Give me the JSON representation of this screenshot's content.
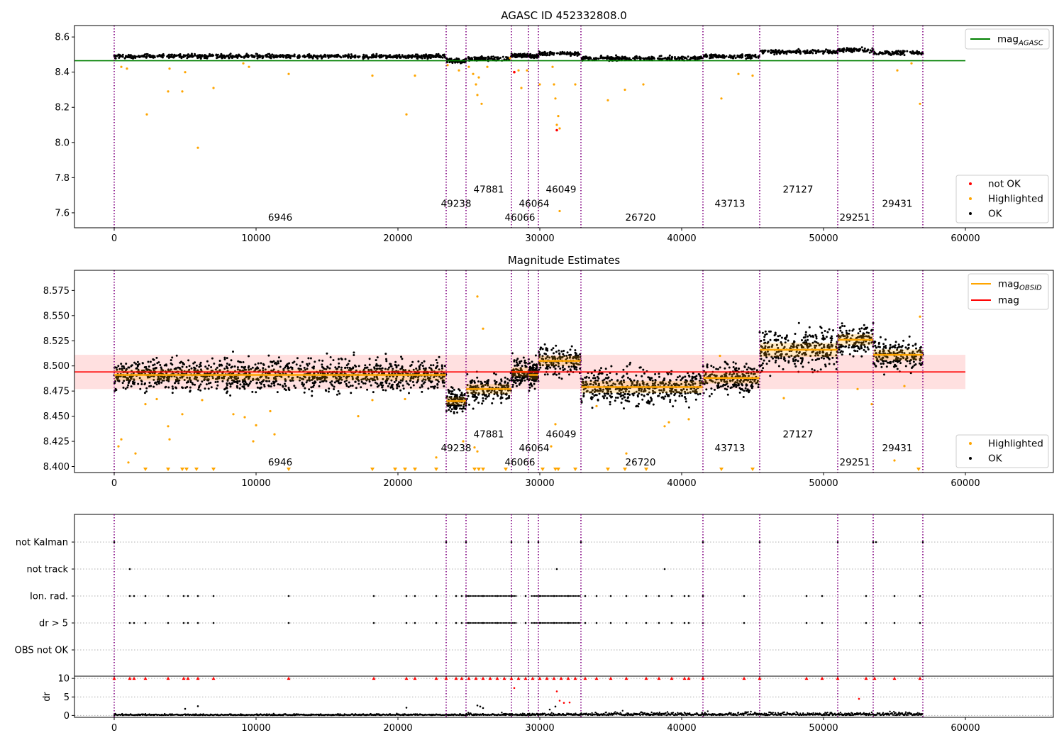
{
  "chart_data": [
    {
      "type": "scatter",
      "title": "AGASC ID 452332808.0",
      "xlim": [
        -2800,
        66200
      ],
      "ylim": [
        7.515,
        8.665
      ],
      "xticks": [
        0,
        10000,
        20000,
        30000,
        40000,
        50000,
        60000
      ],
      "yticks": [
        7.6,
        7.8,
        8.0,
        8.2,
        8.4,
        8.6
      ],
      "ytick_labels": [
        "7.6",
        "7.8",
        "8.0",
        "8.2",
        "8.4",
        "8.6"
      ],
      "legend_top": [
        {
          "label": "mag",
          "sub": "AGASC",
          "color": "#008000",
          "kind": "line"
        }
      ],
      "legend_bottom": [
        {
          "label": "not OK",
          "color": "#ff0000",
          "kind": "dot"
        },
        {
          "label": "Highlighted",
          "color": "#ffa500",
          "kind": "dot"
        },
        {
          "label": "OK",
          "color": "#000000",
          "kind": "dot"
        }
      ],
      "mag_agasc": 8.465,
      "mag_agasc_xrange": [
        -2800,
        60000
      ],
      "segments": [
        {
          "x0": 0,
          "x1": 23400,
          "level": 8.49
        },
        {
          "x0": 23400,
          "x1": 24800,
          "level": 8.464
        },
        {
          "x0": 24800,
          "x1": 28000,
          "level": 8.477
        },
        {
          "x0": 28000,
          "x1": 29200,
          "level": 8.495
        },
        {
          "x0": 29200,
          "x1": 29900,
          "level": 8.492
        },
        {
          "x0": 29900,
          "x1": 32900,
          "level": 8.505
        },
        {
          "x0": 32900,
          "x1": 41500,
          "level": 8.479
        },
        {
          "x0": 41500,
          "x1": 45500,
          "level": 8.49
        },
        {
          "x0": 45500,
          "x1": 51000,
          "level": 8.515
        },
        {
          "x0": 51000,
          "x1": 53500,
          "level": 8.525
        },
        {
          "x0": 53500,
          "x1": 57000,
          "level": 8.51
        }
      ],
      "highlighted_points": [
        [
          500,
          8.43
        ],
        [
          900,
          8.42
        ],
        [
          2300,
          8.16
        ],
        [
          3800,
          8.29
        ],
        [
          3900,
          8.42
        ],
        [
          4800,
          8.29
        ],
        [
          5000,
          8.4
        ],
        [
          5900,
          7.97
        ],
        [
          7000,
          8.31
        ],
        [
          9100,
          8.45
        ],
        [
          9500,
          8.43
        ],
        [
          12300,
          8.39
        ],
        [
          18200,
          8.38
        ],
        [
          20600,
          8.16
        ],
        [
          21200,
          8.38
        ],
        [
          23500,
          8.44
        ],
        [
          24300,
          8.41
        ],
        [
          25000,
          8.43
        ],
        [
          25300,
          8.39
        ],
        [
          25500,
          8.33
        ],
        [
          25600,
          8.27
        ],
        [
          25700,
          8.37
        ],
        [
          25900,
          8.22
        ],
        [
          26300,
          8.43
        ],
        [
          27900,
          8.48
        ],
        [
          28500,
          8.41
        ],
        [
          28700,
          8.31
        ],
        [
          29100,
          8.41
        ],
        [
          30000,
          8.33
        ],
        [
          30900,
          8.43
        ],
        [
          31000,
          8.33
        ],
        [
          31100,
          8.25
        ],
        [
          31200,
          8.1
        ],
        [
          31300,
          8.15
        ],
        [
          31400,
          8.08
        ],
        [
          31400,
          7.61
        ],
        [
          32500,
          8.33
        ],
        [
          34800,
          8.24
        ],
        [
          36000,
          8.3
        ],
        [
          37300,
          8.33
        ],
        [
          42800,
          8.25
        ],
        [
          44000,
          8.39
        ],
        [
          45000,
          8.38
        ],
        [
          55200,
          8.41
        ],
        [
          56800,
          8.22
        ],
        [
          56200,
          8.45
        ]
      ],
      "notok_points": [
        [
          28200,
          8.4
        ],
        [
          31200,
          8.07
        ]
      ],
      "obsid_labels": [
        {
          "x": 11700,
          "y": 7.555,
          "text": "6946"
        },
        {
          "x": 24100,
          "y": 7.635,
          "text": "49238"
        },
        {
          "x": 26400,
          "y": 7.715,
          "text": "47881"
        },
        {
          "x": 28600,
          "y": 7.555,
          "text": "46066"
        },
        {
          "x": 29600,
          "y": 7.635,
          "text": "46064"
        },
        {
          "x": 31500,
          "y": 7.715,
          "text": "46049"
        },
        {
          "x": 37100,
          "y": 7.555,
          "text": "26720"
        },
        {
          "x": 43400,
          "y": 7.635,
          "text": "43713"
        },
        {
          "x": 48200,
          "y": 7.715,
          "text": "27127"
        },
        {
          "x": 52200,
          "y": 7.555,
          "text": "29251"
        },
        {
          "x": 55200,
          "y": 7.635,
          "text": "29431"
        }
      ]
    },
    {
      "type": "scatter",
      "title": "Magnitude Estimates",
      "xlim": [
        -2800,
        66200
      ],
      "ylim": [
        8.394,
        8.595
      ],
      "xticks": [
        0,
        10000,
        20000,
        30000,
        40000,
        50000,
        60000
      ],
      "yticks": [
        8.4,
        8.425,
        8.45,
        8.475,
        8.5,
        8.525,
        8.55,
        8.575
      ],
      "ytick_labels": [
        "8.400",
        "8.425",
        "8.450",
        "8.475",
        "8.500",
        "8.525",
        "8.550",
        "8.575"
      ],
      "legend_top": [
        {
          "label": "mag",
          "sub": "OBSID",
          "color": "#ffa500",
          "kind": "line"
        },
        {
          "label": "mag",
          "sub": "",
          "color": "#ff0000",
          "kind": "line"
        }
      ],
      "legend_bottom": [
        {
          "label": "Highlighted",
          "color": "#ffa500",
          "kind": "dot"
        },
        {
          "label": "OK",
          "color": "#000000",
          "kind": "dot"
        }
      ],
      "mag": 8.494,
      "mag_band": [
        8.477,
        8.511
      ],
      "mag_xrange": [
        -2800,
        60000
      ],
      "segments": [
        {
          "x0": 0,
          "x1": 23400,
          "level": 8.491,
          "spread": 0.011
        },
        {
          "x0": 23400,
          "x1": 24800,
          "level": 8.465,
          "spread": 0.008
        },
        {
          "x0": 24800,
          "x1": 28000,
          "level": 8.477,
          "spread": 0.01
        },
        {
          "x0": 28000,
          "x1": 29200,
          "level": 8.494,
          "spread": 0.009
        },
        {
          "x0": 29200,
          "x1": 29900,
          "level": 8.491,
          "spread": 0.009
        },
        {
          "x0": 29900,
          "x1": 32900,
          "level": 8.505,
          "spread": 0.01
        },
        {
          "x0": 32900,
          "x1": 41500,
          "level": 8.479,
          "spread": 0.012
        },
        {
          "x0": 41500,
          "x1": 45500,
          "level": 8.488,
          "spread": 0.011
        },
        {
          "x0": 45500,
          "x1": 51000,
          "level": 8.516,
          "spread": 0.014
        },
        {
          "x0": 51000,
          "x1": 53500,
          "level": 8.526,
          "spread": 0.011
        },
        {
          "x0": 53500,
          "x1": 57000,
          "level": 8.511,
          "spread": 0.011
        }
      ],
      "highlighted_points": [
        [
          300,
          8.42
        ],
        [
          500,
          8.427
        ],
        [
          1000,
          8.404
        ],
        [
          1500,
          8.413
        ],
        [
          2200,
          8.462
        ],
        [
          3000,
          8.467
        ],
        [
          3800,
          8.44
        ],
        [
          3900,
          8.427
        ],
        [
          4800,
          8.452
        ],
        [
          6200,
          8.466
        ],
        [
          8400,
          8.452
        ],
        [
          9200,
          8.449
        ],
        [
          9800,
          8.425
        ],
        [
          10000,
          8.441
        ],
        [
          11000,
          8.455
        ],
        [
          11300,
          8.432
        ],
        [
          17200,
          8.45
        ],
        [
          18200,
          8.466
        ],
        [
          20500,
          8.467
        ],
        [
          22700,
          8.409
        ],
        [
          24600,
          8.425
        ],
        [
          25400,
          8.419
        ],
        [
          25600,
          8.415
        ],
        [
          25600,
          8.569
        ],
        [
          26000,
          8.537
        ],
        [
          30800,
          8.42
        ],
        [
          31100,
          8.442
        ],
        [
          34000,
          8.46
        ],
        [
          36100,
          8.413
        ],
        [
          38800,
          8.44
        ],
        [
          39100,
          8.444
        ],
        [
          40500,
          8.447
        ],
        [
          42700,
          8.51
        ],
        [
          47200,
          8.468
        ],
        [
          52400,
          8.477
        ],
        [
          53400,
          8.462
        ],
        [
          55000,
          8.406
        ],
        [
          55700,
          8.48
        ],
        [
          56800,
          8.549
        ]
      ],
      "clipped_markers": [
        2200,
        3800,
        4800,
        5100,
        5800,
        7000,
        12300,
        18200,
        19800,
        20500,
        21200,
        22700,
        25400,
        25700,
        26000,
        27600,
        30200,
        31100,
        31300,
        32500,
        34800,
        36000,
        37500,
        42800,
        45000,
        56700
      ],
      "obsid_labels": [
        {
          "x": 11700,
          "y": 8.401,
          "text": "6946"
        },
        {
          "x": 24100,
          "y": 8.415,
          "text": "49238"
        },
        {
          "x": 26400,
          "y": 8.429,
          "text": "47881"
        },
        {
          "x": 28600,
          "y": 8.401,
          "text": "46066"
        },
        {
          "x": 29600,
          "y": 8.415,
          "text": "46064"
        },
        {
          "x": 31500,
          "y": 8.429,
          "text": "46049"
        },
        {
          "x": 37100,
          "y": 8.401,
          "text": "26720"
        },
        {
          "x": 43400,
          "y": 8.415,
          "text": "43713"
        },
        {
          "x": 48200,
          "y": 8.429,
          "text": "27127"
        },
        {
          "x": 52200,
          "y": 8.401,
          "text": "29251"
        },
        {
          "x": 55200,
          "y": 8.415,
          "text": "29431"
        }
      ]
    },
    {
      "type": "scatter",
      "title": "",
      "xlim": [
        -2800,
        66200
      ],
      "flag_rows": [
        "not Kalman",
        "not track",
        "Ion. rad.",
        "dr > 5",
        "OBS not OK"
      ],
      "flag_points": {
        "not Kalman": [
          0,
          23400,
          24800,
          28000,
          29200,
          29900,
          32900,
          41500,
          45500,
          51000,
          53500,
          53700,
          57000
        ],
        "not track": [
          1100,
          31200,
          38800
        ],
        "Ion. rad.": [
          1100,
          1400,
          2200,
          3800,
          4900,
          5200,
          5900,
          7000,
          12300,
          18300,
          20600,
          21200,
          22700,
          24100,
          24500,
          25000,
          26000,
          27000,
          28000,
          29000,
          30000,
          31000,
          32000,
          33200,
          34000,
          35000,
          36100,
          37500,
          38400,
          39300,
          40200,
          40500,
          41500,
          44400,
          48800,
          49900,
          53000,
          55000,
          56800
        ],
        "dr > 5": [
          1100,
          1400,
          2200,
          3800,
          4900,
          5200,
          5900,
          7000,
          12300,
          18300,
          20600,
          21200,
          22700,
          24100,
          24500,
          25000,
          26000,
          27000,
          28000,
          29000,
          30000,
          31000,
          32000,
          33200,
          34000,
          35000,
          36100,
          37500,
          38400,
          39300,
          40200,
          40500,
          41500,
          44400,
          48800,
          49900,
          53000,
          55000,
          56800
        ],
        "OBS not OK": []
      },
      "ion_dense_range": [
        24800,
        32900
      ],
      "dr_ylim": [
        -0.5,
        10.6
      ],
      "dr_yticks": [
        0,
        5,
        10
      ],
      "dr_ytick_labels": [
        "0",
        "5",
        "10"
      ],
      "dr_ylabel": "dr",
      "dr_clipped_markers": [
        0,
        1100,
        1400,
        2200,
        3800,
        4900,
        5200,
        5900,
        7000,
        12300,
        18300,
        20600,
        21200,
        22700,
        23400,
        24100,
        24500,
        25000,
        25500,
        26000,
        26500,
        27000,
        27500,
        28000,
        28500,
        29000,
        29500,
        30000,
        30500,
        31000,
        31500,
        32000,
        32500,
        33200,
        34000,
        35000,
        36100,
        37500,
        38400,
        39300,
        40200,
        40500,
        41500,
        44400,
        45500,
        48800,
        49900,
        51000,
        53000,
        53600,
        55000,
        56800
      ],
      "dr_red_points": [
        [
          28200,
          7.4
        ],
        [
          31200,
          6.5
        ],
        [
          31400,
          4
        ],
        [
          31700,
          3.4
        ],
        [
          32100,
          3.5
        ],
        [
          52500,
          4.5
        ]
      ],
      "dr_black_points": [
        [
          5000,
          1.8
        ],
        [
          5900,
          2.5
        ],
        [
          20600,
          2.1
        ],
        [
          25600,
          2.7
        ],
        [
          25800,
          2.4
        ],
        [
          26000,
          2
        ],
        [
          30700,
          1.6
        ],
        [
          31100,
          2.4
        ]
      ]
    }
  ]
}
